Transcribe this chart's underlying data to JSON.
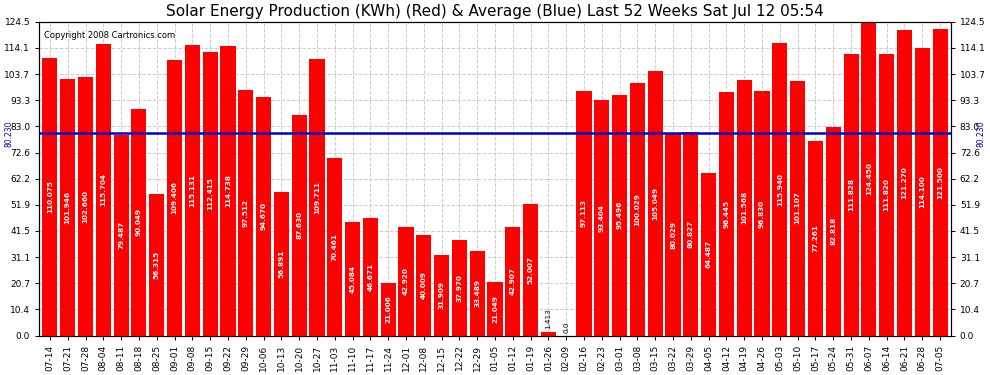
{
  "title": "Solar Energy Production (KWh) (Red) & Average (Blue) Last 52 Weeks Sat Jul 12 05:54",
  "copyright": "Copyright 2008 Cartronics.com",
  "average_line": 80.23,
  "average_label": "80.230",
  "ylim": [
    0,
    124.5
  ],
  "yticks": [
    0.0,
    10.4,
    20.7,
    31.1,
    41.5,
    51.9,
    62.2,
    72.6,
    83.0,
    93.3,
    103.7,
    114.1,
    124.5
  ],
  "bar_color": "#FF0000",
  "avg_line_color": "#0000CC",
  "background_color": "#FFFFFF",
  "plot_bg_color": "#FFFFFF",
  "grid_color": "#CCCCCC",
  "text_color": "#000000",
  "bar_values": [
    110.075,
    101.946,
    102.66,
    115.704,
    79.487,
    90.049,
    56.315,
    109.406,
    115.131,
    112.415,
    114.738,
    97.512,
    94.67,
    56.891,
    87.63,
    109.711,
    70.461,
    45.084,
    46.671,
    21.006,
    42.92,
    40.009,
    31.909,
    37.97,
    33.489,
    21.049,
    42.907,
    52.007,
    1.413,
    0.0,
    97.113,
    93.404,
    95.496,
    100.029,
    105.049,
    80.029,
    80.827,
    64.487,
    96.445,
    101.568,
    96.83,
    115.94,
    101.107,
    77.261,
    82.818,
    111.828,
    124.45,
    111.82,
    121.27,
    114.1,
    121.5
  ],
  "x_labels": [
    "07-14",
    "07-21",
    "07-28",
    "08-04",
    "08-11",
    "08-18",
    "08-25",
    "09-01",
    "09-08",
    "09-15",
    "09-22",
    "09-29",
    "10-06",
    "10-13",
    "10-20",
    "10-27",
    "11-03",
    "11-10",
    "11-17",
    "11-24",
    "12-01",
    "12-08",
    "12-15",
    "12-22",
    "12-29",
    "01-05",
    "01-12",
    "01-19",
    "01-26",
    "02-09",
    "02-16",
    "02-23",
    "03-01",
    "03-08",
    "03-15",
    "03-22",
    "03-29",
    "04-05",
    "04-12",
    "04-19",
    "04-26",
    "05-03",
    "05-10",
    "05-17",
    "05-24",
    "05-31",
    "06-07",
    "06-14",
    "06-21",
    "06-28",
    "07-05"
  ],
  "title_fontsize": 11,
  "tick_fontsize": 6.5,
  "value_fontsize": 5.2
}
